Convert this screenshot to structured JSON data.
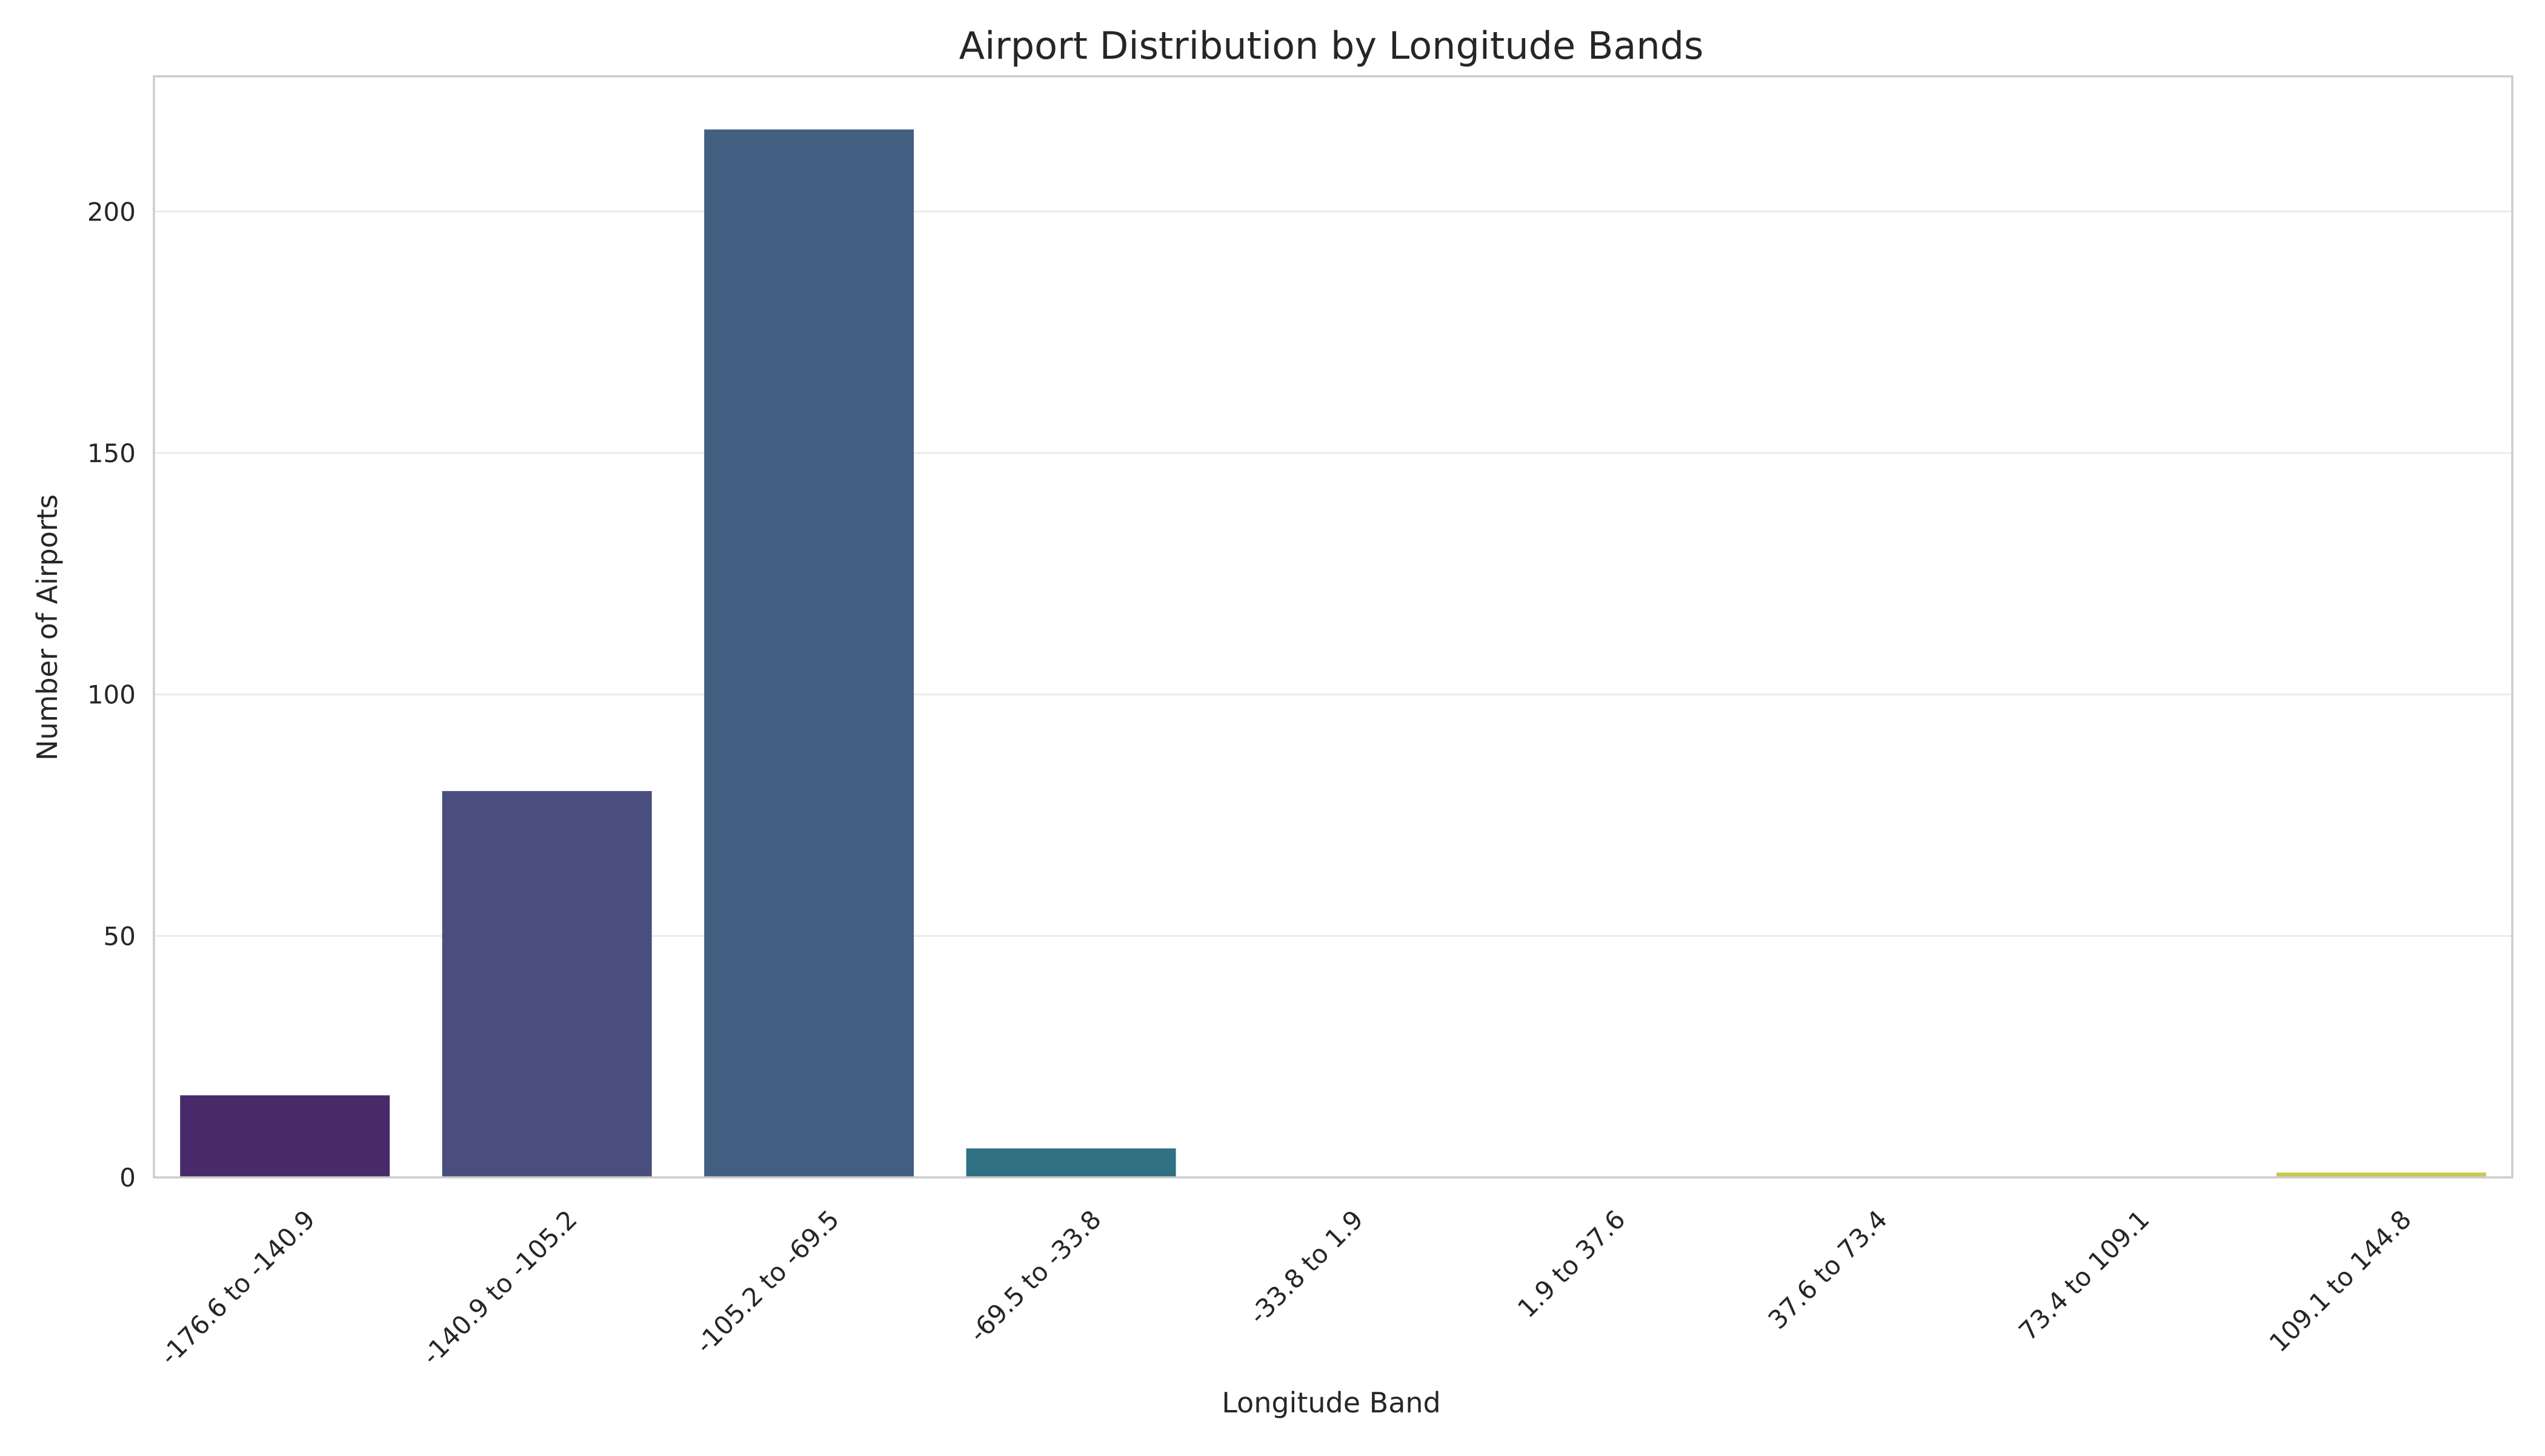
{
  "chart_data": {
    "type": "bar",
    "title": "Airport Distribution by Longitude Bands",
    "xlabel": "Longitude Band",
    "ylabel": "Number of Airports",
    "categories": [
      "-176.6 to -140.9",
      "-140.9 to -105.2",
      "-105.2 to -69.5",
      "-69.5 to -33.8",
      "-33.8 to 1.9",
      "1.9 to 37.6",
      "37.6 to 73.4",
      "73.4 to 109.1",
      "109.1 to 144.8"
    ],
    "values": [
      17,
      80,
      217,
      6,
      0,
      0,
      0,
      0,
      1
    ],
    "colors": [
      "#482a6b",
      "#4a4e7e",
      "#415f81",
      "#2f7082",
      "#23817d",
      "#2f916e",
      "#56a35a",
      "#8bb447",
      "#c8c94a"
    ],
    "ylim": [
      0,
      228
    ],
    "yticks": [
      0,
      50,
      100,
      150,
      200
    ],
    "grid": true,
    "legend": "none"
  }
}
